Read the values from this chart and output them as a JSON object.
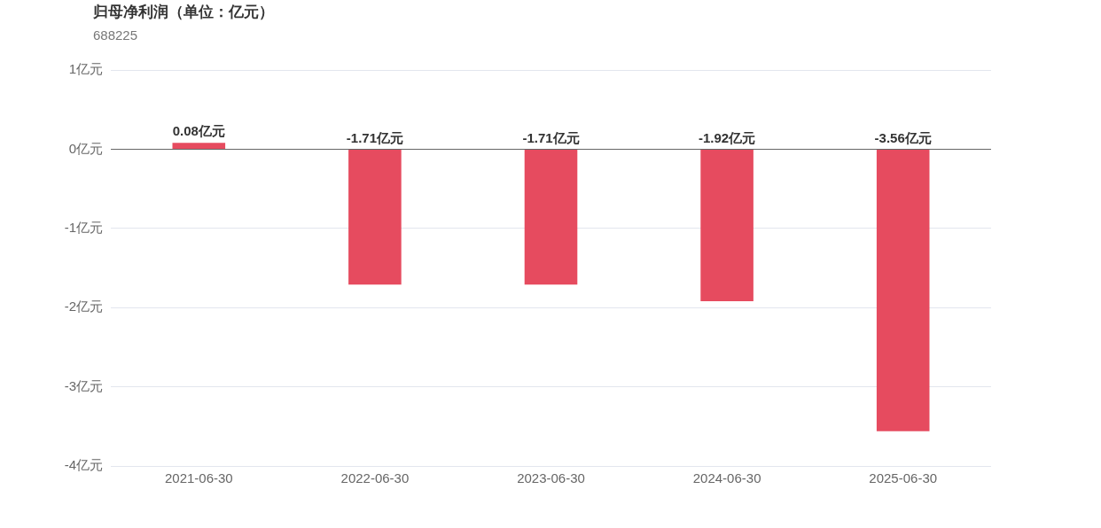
{
  "chart_data": {
    "type": "bar",
    "title": "归母净利润（单位：亿元）",
    "subtitle": "688225",
    "categories": [
      "2021-06-30",
      "2022-06-30",
      "2023-06-30",
      "2024-06-30",
      "2025-06-30"
    ],
    "values": [
      0.08,
      -1.71,
      -1.71,
      -1.92,
      -3.56
    ],
    "value_labels": [
      "0.08亿元",
      "-1.71亿元",
      "-1.71亿元",
      "-1.92亿元",
      "-3.56亿元"
    ],
    "color": "#e64b5f",
    "ylim": [
      -4,
      1
    ],
    "yticks": [
      {
        "value": -4,
        "label": "-4亿元"
      },
      {
        "value": -3,
        "label": "-3亿元"
      },
      {
        "value": -2,
        "label": "-2亿元"
      },
      {
        "value": -1,
        "label": "-1亿元"
      },
      {
        "value": 0,
        "label": "0亿元"
      },
      {
        "value": 1,
        "label": "1亿元"
      }
    ],
    "grid": "y",
    "legend": false
  }
}
